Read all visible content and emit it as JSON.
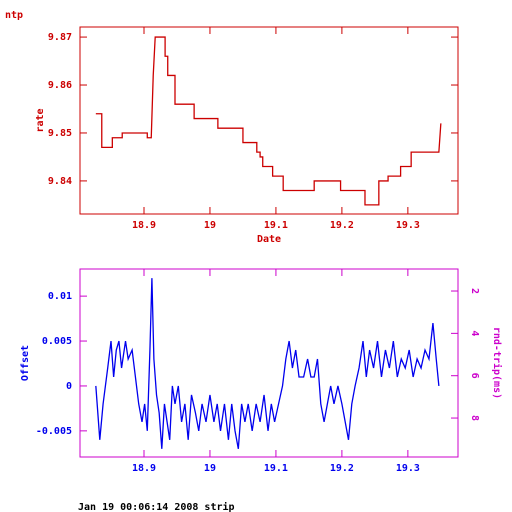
{
  "chart_data": [
    {
      "type": "line",
      "title": "ntp",
      "xlabel": "Date",
      "ylabel": "rate",
      "color": "#cc0000",
      "axis_color": "#cc0000",
      "xlim": [
        18.803,
        19.376
      ],
      "xticks": [
        18.9,
        19,
        19.1,
        19.2,
        19.3
      ],
      "ylim": [
        9.8331,
        9.8721
      ],
      "yticks": [
        9.84,
        9.85,
        9.86,
        9.87
      ],
      "x": [
        18.827,
        18.836,
        18.836,
        18.852,
        18.852,
        18.867,
        18.867,
        18.905,
        18.905,
        18.911,
        18.914,
        18.917,
        18.932,
        18.932,
        18.936,
        18.936,
        18.947,
        18.947,
        18.976,
        18.976,
        19.012,
        19.012,
        19.05,
        19.05,
        19.071,
        19.071,
        19.076,
        19.076,
        19.08,
        19.08,
        19.095,
        19.095,
        19.111,
        19.111,
        19.158,
        19.158,
        19.198,
        19.198,
        19.235,
        19.235,
        19.256,
        19.256,
        19.27,
        19.27,
        19.289,
        19.289,
        19.305,
        19.305,
        19.347,
        19.35
      ],
      "values": [
        9.854,
        9.854,
        9.847,
        9.847,
        9.849,
        9.849,
        9.85,
        9.85,
        9.849,
        9.849,
        9.862,
        9.87,
        9.87,
        9.866,
        9.866,
        9.862,
        9.862,
        9.856,
        9.856,
        9.853,
        9.853,
        9.851,
        9.851,
        9.848,
        9.848,
        9.846,
        9.846,
        9.845,
        9.845,
        9.843,
        9.843,
        9.841,
        9.841,
        9.838,
        9.838,
        9.84,
        9.84,
        9.838,
        9.838,
        9.835,
        9.835,
        9.84,
        9.84,
        9.841,
        9.841,
        9.843,
        9.843,
        9.846,
        9.846,
        9.852
      ]
    },
    {
      "type": "line",
      "ylabel": "Offset",
      "y2label": "rnd-trip(ms)",
      "color": "#0000ee",
      "axis_color": "#cc00cc",
      "xlim": [
        18.803,
        19.376
      ],
      "xticks": [
        18.9,
        19,
        19.1,
        19.2,
        19.3
      ],
      "ylim": [
        -0.00791,
        0.01302
      ],
      "yticks": [
        -0.005,
        0,
        0.005,
        0.01
      ],
      "y2lim": [
        9.84,
        0.96
      ],
      "y2ticks": [
        2,
        4,
        6,
        8
      ],
      "x": [
        18.827,
        18.833,
        18.838,
        18.845,
        18.85,
        18.854,
        18.858,
        18.862,
        18.866,
        18.872,
        18.876,
        18.882,
        18.887,
        18.892,
        18.897,
        18.901,
        18.905,
        18.909,
        18.912,
        18.915,
        18.919,
        18.923,
        18.927,
        18.931,
        18.935,
        18.939,
        18.943,
        18.947,
        18.952,
        18.957,
        18.962,
        18.967,
        18.972,
        18.978,
        18.983,
        18.988,
        18.994,
        19.0,
        19.006,
        19.011,
        19.016,
        19.022,
        19.028,
        19.033,
        19.038,
        19.043,
        19.048,
        19.053,
        19.058,
        19.064,
        19.07,
        19.076,
        19.082,
        19.088,
        19.093,
        19.098,
        19.104,
        19.11,
        19.115,
        19.12,
        19.125,
        19.13,
        19.135,
        19.142,
        19.148,
        19.153,
        19.158,
        19.163,
        19.168,
        19.173,
        19.178,
        19.183,
        19.188,
        19.194,
        19.2,
        19.205,
        19.21,
        19.215,
        19.22,
        19.226,
        19.232,
        19.237,
        19.242,
        19.248,
        19.254,
        19.26,
        19.266,
        19.272,
        19.278,
        19.284,
        19.29,
        19.296,
        19.302,
        19.308,
        19.314,
        19.32,
        19.326,
        19.332,
        19.338,
        19.343,
        19.347
      ],
      "values": [
        0,
        -0.006,
        -0.002,
        0.002,
        0.005,
        0.001,
        0.004,
        0.005,
        0.002,
        0.005,
        0.003,
        0.004,
        0.001,
        -0.002,
        -0.004,
        -0.002,
        -0.005,
        0.004,
        0.012,
        0.003,
        -0.001,
        -0.003,
        -0.007,
        -0.002,
        -0.004,
        -0.006,
        0,
        -0.002,
        0,
        -0.004,
        -0.002,
        -0.006,
        -0.001,
        -0.003,
        -0.005,
        -0.002,
        -0.004,
        -0.001,
        -0.004,
        -0.002,
        -0.005,
        -0.002,
        -0.006,
        -0.002,
        -0.005,
        -0.007,
        -0.002,
        -0.004,
        -0.002,
        -0.005,
        -0.002,
        -0.004,
        -0.001,
        -0.005,
        -0.002,
        -0.004,
        -0.002,
        0,
        0.003,
        0.005,
        0.002,
        0.004,
        0.001,
        0.001,
        0.003,
        0.001,
        0.001,
        0.003,
        -0.002,
        -0.004,
        -0.002,
        0,
        -0.002,
        0,
        -0.002,
        -0.004,
        -0.006,
        -0.002,
        0,
        0.002,
        0.005,
        0.001,
        0.004,
        0.002,
        0.005,
        0.001,
        0.004,
        0.002,
        0.005,
        0.001,
        0.003,
        0.002,
        0.004,
        0.001,
        0.003,
        0.002,
        0.004,
        0.003,
        0.007,
        0.003,
        0
      ]
    }
  ],
  "footer": "Jan 19 00:06:14 2008 strip"
}
